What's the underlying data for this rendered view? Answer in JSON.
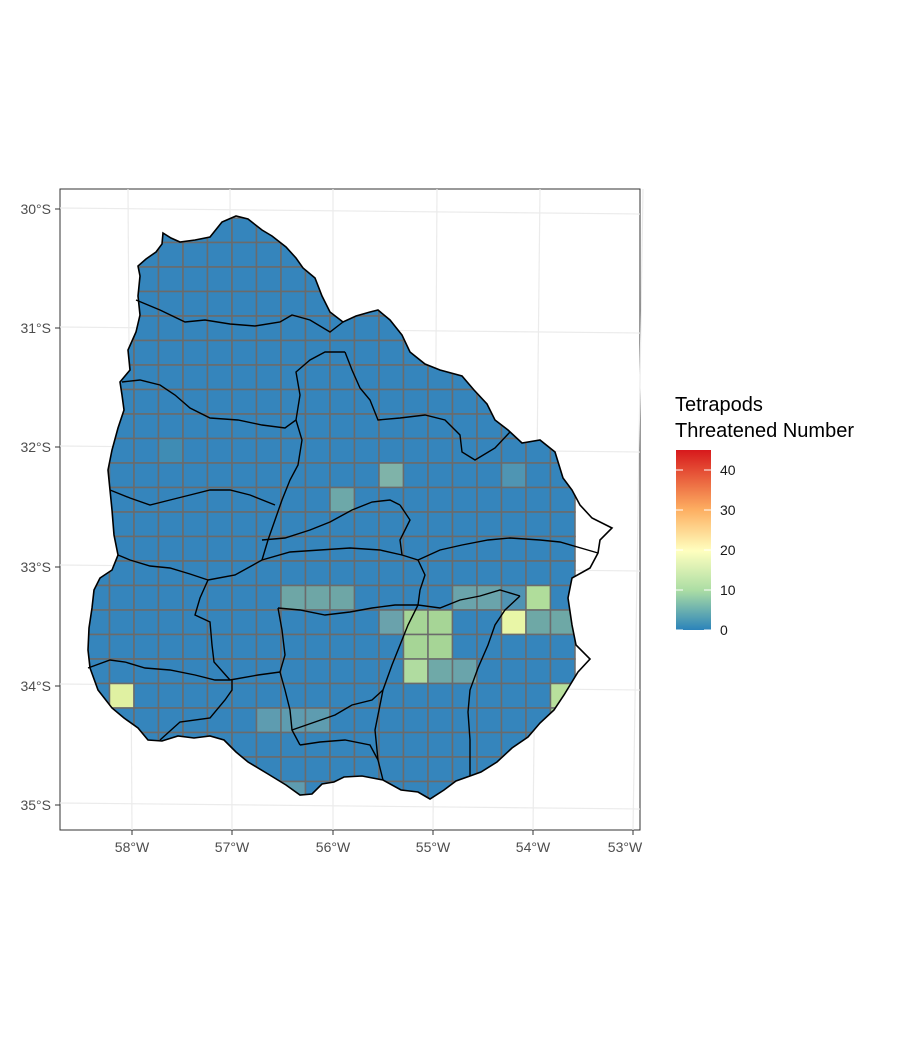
{
  "map": {
    "lat_labels": [
      "30°S",
      "31°S",
      "32°S",
      "33°S",
      "34°S",
      "35°S"
    ],
    "lon_labels": [
      "58°W",
      "57°W",
      "56°W",
      "55°W",
      "54°W",
      "53°W"
    ],
    "legend": {
      "title_line1": "Tetrapods",
      "title_line2": "Threatened Number",
      "ticks": [
        "0",
        "10",
        "20",
        "30",
        "40"
      ],
      "tick_values": [
        0,
        10,
        20,
        30,
        40
      ],
      "min": 0,
      "max": 45,
      "colors": [
        "#2b83ba",
        "#abdda4",
        "#ffffbf",
        "#fdae61",
        "#d7191c"
      ]
    },
    "cell_colors": {
      "base": "#3585bc",
      "grid_line": "#6b6b6b",
      "border": "#000000"
    }
  }
}
